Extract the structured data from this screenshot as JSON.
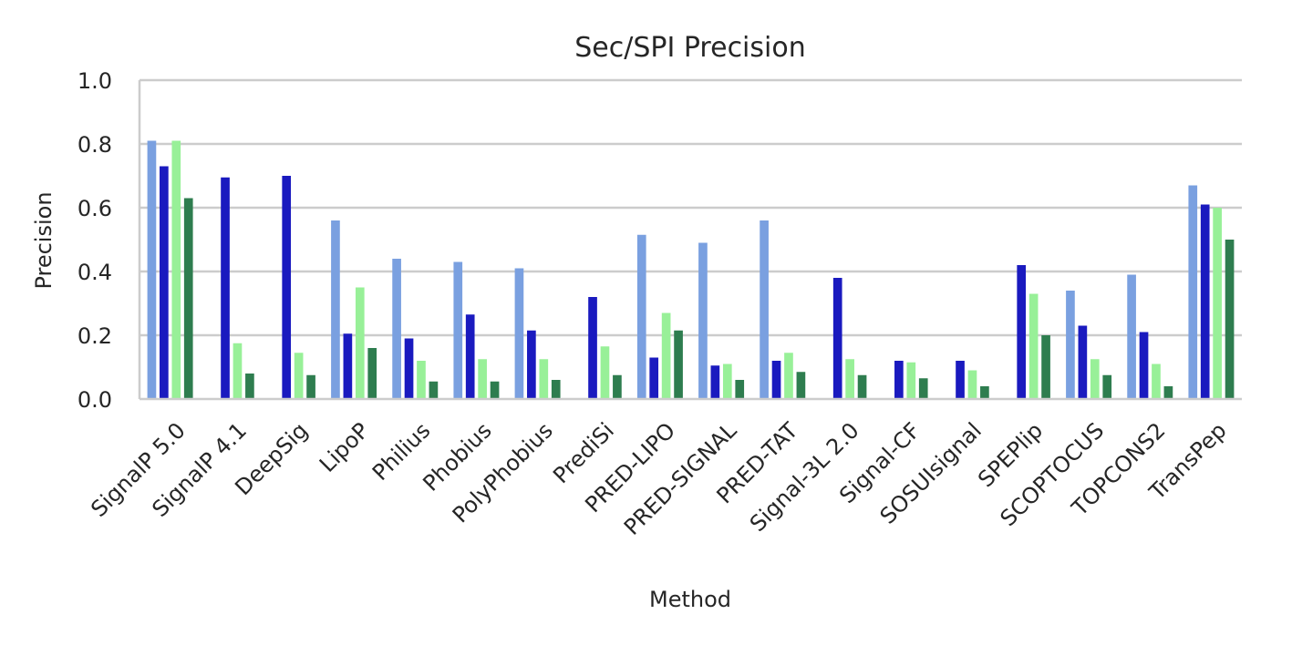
{
  "chart_data": {
    "type": "bar",
    "title": "Sec/SPI Precision",
    "xlabel": "Method",
    "ylabel": "Precision",
    "ylim": [
      0,
      1.0
    ],
    "yticks": [
      "0.0",
      "0.2",
      "0.4",
      "0.6",
      "0.8",
      "1.0"
    ],
    "grid": "horizontal",
    "categories": [
      "SignalP 5.0",
      "SignalP 4.1",
      "DeepSig",
      "LipoP",
      "Philius",
      "Phobius",
      "PolyPhobius",
      "PrediSi",
      "PRED-LIPO",
      "PRED-SIGNAL",
      "PRED-TAT",
      "Signal-3L 2.0",
      "Signal-CF",
      "SOSUIsignal",
      "SPEPlip",
      "SCOPTOCUS",
      "TOPCONS2",
      "TransPep"
    ],
    "series": [
      {
        "color": "#7aa0e0",
        "values": [
          0.81,
          0,
          0,
          0.56,
          0.44,
          0.43,
          0.41,
          0,
          0.515,
          0.49,
          0.56,
          0,
          0,
          0,
          0,
          0.34,
          0.39,
          0.67
        ]
      },
      {
        "color": "#1a1abf",
        "values": [
          0.73,
          0.695,
          0.7,
          0.205,
          0.19,
          0.265,
          0.215,
          0.32,
          0.13,
          0.105,
          0.12,
          0.38,
          0.12,
          0.12,
          0.42,
          0.23,
          0.21,
          0.61
        ]
      },
      {
        "color": "#98f098",
        "values": [
          0.81,
          0.175,
          0.145,
          0.35,
          0.12,
          0.125,
          0.125,
          0.165,
          0.27,
          0.11,
          0.145,
          0.125,
          0.115,
          0.09,
          0.33,
          0.125,
          0.11,
          0.6
        ]
      },
      {
        "color": "#2e7d4f",
        "values": [
          0.63,
          0.08,
          0.075,
          0.16,
          0.055,
          0.055,
          0.06,
          0.075,
          0.215,
          0.06,
          0.085,
          0.075,
          0.065,
          0.04,
          0.2,
          0.075,
          0.04,
          0.5
        ]
      }
    ]
  }
}
